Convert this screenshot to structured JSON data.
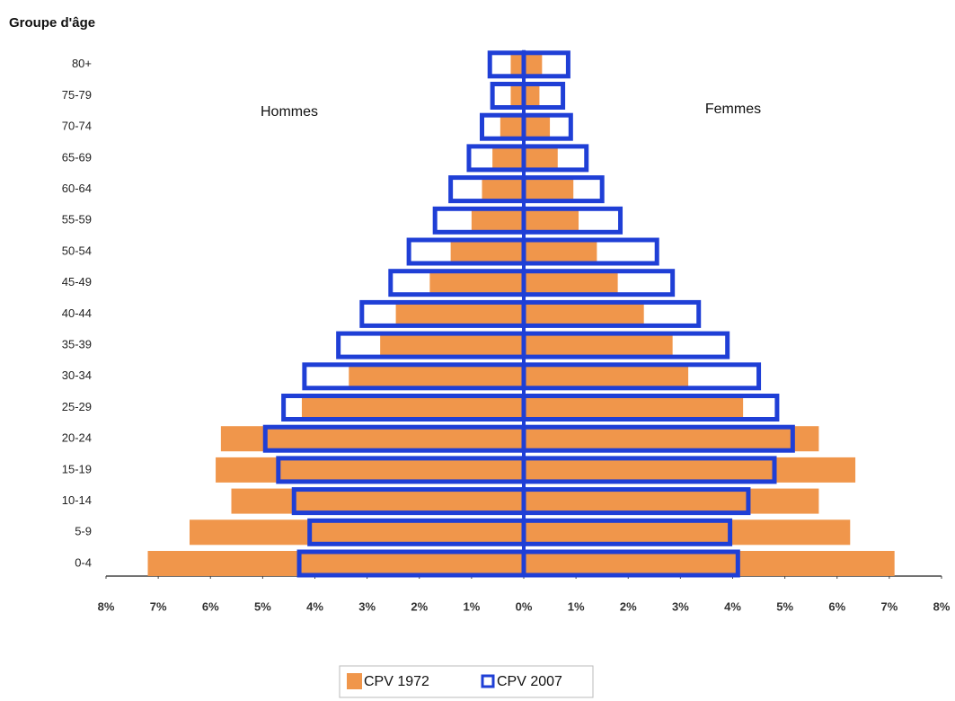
{
  "chart_data": {
    "type": "pyramid",
    "y_axis_title": "Groupe d'âge",
    "left_label": "Hommes",
    "right_label": "Femmes",
    "categories": [
      "0-4",
      "5-9",
      "10-14",
      "15-19",
      "20-24",
      "25-29",
      "30-34",
      "35-39",
      "40-44",
      "45-49",
      "50-54",
      "55-59",
      "60-64",
      "65-69",
      "70-74",
      "75-79",
      "80+"
    ],
    "series": [
      {
        "name": "CPV 1972",
        "color": "#f0964b",
        "style": "filled",
        "hommes": [
          7.2,
          6.4,
          5.6,
          5.9,
          5.8,
          4.25,
          3.35,
          2.75,
          2.45,
          1.8,
          1.4,
          1.0,
          0.8,
          0.6,
          0.45,
          0.25,
          0.25
        ],
        "femmes": [
          7.1,
          6.25,
          5.65,
          6.35,
          5.65,
          4.2,
          3.15,
          2.85,
          2.3,
          1.8,
          1.4,
          1.05,
          0.95,
          0.65,
          0.5,
          0.3,
          0.35
        ]
      },
      {
        "name": "CPV 2007",
        "color": "#1f3fd6",
        "style": "outline",
        "hommes": [
          4.3,
          4.1,
          4.4,
          4.7,
          4.95,
          4.6,
          4.2,
          3.55,
          3.1,
          2.55,
          2.2,
          1.7,
          1.4,
          1.05,
          0.8,
          0.6,
          0.65
        ],
        "femmes": [
          4.1,
          3.95,
          4.3,
          4.8,
          5.15,
          4.85,
          4.5,
          3.9,
          3.35,
          2.85,
          2.55,
          1.85,
          1.5,
          1.2,
          0.9,
          0.75,
          0.85
        ]
      }
    ],
    "xlim": [
      -8,
      8
    ],
    "xticks": [
      {
        "value": -8,
        "label": "8%"
      },
      {
        "value": -7,
        "label": "7%"
      },
      {
        "value": -6,
        "label": "6%"
      },
      {
        "value": -5,
        "label": "5%"
      },
      {
        "value": -4,
        "label": "4%"
      },
      {
        "value": -3,
        "label": "3%"
      },
      {
        "value": -2,
        "label": "2%"
      },
      {
        "value": -1,
        "label": "1%"
      },
      {
        "value": 0,
        "label": "0%"
      },
      {
        "value": 1,
        "label": "1%"
      },
      {
        "value": 2,
        "label": "2%"
      },
      {
        "value": 3,
        "label": "3%"
      },
      {
        "value": 4,
        "label": "4%"
      },
      {
        "value": 5,
        "label": "5%"
      },
      {
        "value": 6,
        "label": "6%"
      },
      {
        "value": 7,
        "label": "7%"
      },
      {
        "value": 8,
        "label": "8%"
      }
    ],
    "legend": "bottom"
  }
}
